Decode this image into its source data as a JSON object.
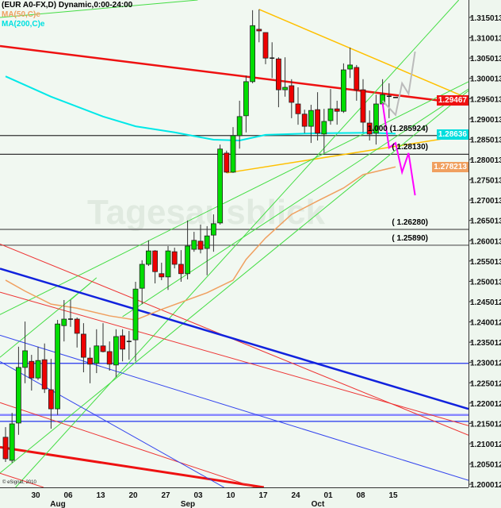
{
  "header": {
    "title": "(EUR A0-FX,D) Dynamic,0:00-24:00",
    "ma50_label": "MA(50,C)e",
    "ma200_label": "MA(200,C)e"
  },
  "watermark": "Tagesausblick",
  "copyright": "© eSignal, 2010",
  "colors": {
    "background": "#f1f8f1",
    "up_candle": "#00dd00",
    "down_candle": "#ee0000",
    "ma50": "#f0a060",
    "ma200": "#00e8e8",
    "projection_bear": "#ff00ff",
    "projection_bull": "#bbbbbb"
  },
  "price_tags": [
    {
      "label": "1.29467",
      "value": 1.29467,
      "color": "#ee1111"
    },
    {
      "label": "1.28636",
      "value": 1.28636,
      "color": "#00dede"
    },
    {
      "label": "1.278213",
      "value": 1.278213,
      "color": "#f0a060"
    }
  ],
  "chart_data": {
    "type": "candlestick",
    "ylim": [
      1.198,
      1.319
    ],
    "grid": false,
    "y_ticks": [
      "1.315013",
      "1.310013",
      "1.305013",
      "1.300013",
      "1.295013",
      "1.290013",
      "1.285013",
      "1.280013",
      "1.275013",
      "1.270013",
      "1.265013",
      "1.260013",
      "1.255013",
      "1.250013",
      "1.245012",
      "1.240012",
      "1.235012",
      "1.230012",
      "1.225012",
      "1.220012",
      "1.215012",
      "1.210012",
      "1.205012",
      "1.200012"
    ],
    "x_ticks": [
      {
        "date": "2010-07-30",
        "label": "30"
      },
      {
        "date": "2010-08-06",
        "label": "06"
      },
      {
        "date": "2010-08-13",
        "label": "13"
      },
      {
        "date": "2010-08-20",
        "label": "20"
      },
      {
        "date": "2010-08-27",
        "label": "27"
      },
      {
        "date": "2010-09-03",
        "label": "03"
      },
      {
        "date": "2010-09-10",
        "label": "10"
      },
      {
        "date": "2010-09-17",
        "label": "17"
      },
      {
        "date": "2010-09-24",
        "label": "24"
      },
      {
        "date": "2010-10-01",
        "label": "01"
      },
      {
        "date": "2010-10-08",
        "label": "08"
      },
      {
        "date": "2010-10-15",
        "label": "15"
      }
    ],
    "months": [
      {
        "date": "2010-08-06",
        "label": "Aug"
      },
      {
        "date": "2010-09-03",
        "label": "Sep"
      },
      {
        "date": "2010-10-01",
        "label": "Oct"
      }
    ],
    "columns": [
      "date",
      "open",
      "high",
      "low",
      "close"
    ],
    "candles": [
      [
        "2010-07-23",
        1.2116,
        1.2141,
        1.2055,
        1.2063
      ],
      [
        "2010-07-26",
        1.2059,
        1.2176,
        1.2053,
        1.2149
      ],
      [
        "2010-07-27",
        1.2151,
        1.2339,
        1.2122,
        1.2288
      ],
      [
        "2010-07-28",
        1.2288,
        1.2401,
        1.2249,
        1.2329
      ],
      [
        "2010-07-29",
        1.2303,
        1.2319,
        1.2231,
        1.2262
      ],
      [
        "2010-07-30",
        1.2262,
        1.2339,
        1.2257,
        1.2305
      ],
      [
        "2010-08-02",
        1.2307,
        1.2347,
        1.2225,
        1.2235
      ],
      [
        "2010-08-03",
        1.2233,
        1.2309,
        1.2137,
        1.2186
      ],
      [
        "2010-08-04",
        1.2186,
        1.2405,
        1.2171,
        1.2395
      ],
      [
        "2010-08-05",
        1.2391,
        1.2454,
        1.2352,
        1.2407
      ],
      [
        "2010-08-06",
        1.2407,
        1.2454,
        1.2388,
        1.2406
      ],
      [
        "2010-08-09",
        1.2407,
        1.2411,
        1.2337,
        1.2372
      ],
      [
        "2010-08-10",
        1.237,
        1.2397,
        1.2276,
        1.2313
      ],
      [
        "2010-08-11",
        1.2311,
        1.2337,
        1.2249,
        1.2296
      ],
      [
        "2010-08-12",
        1.2298,
        1.2382,
        1.2274,
        1.2341
      ],
      [
        "2010-08-13",
        1.2341,
        1.2397,
        1.2325,
        1.2327
      ],
      [
        "2010-08-16",
        1.2327,
        1.2352,
        1.228,
        1.2296
      ],
      [
        "2010-08-17",
        1.2294,
        1.2382,
        1.2264,
        1.2364
      ],
      [
        "2010-08-18",
        1.2366,
        1.2382,
        1.2303,
        1.2333
      ],
      [
        "2010-08-19",
        1.2352,
        1.2378,
        1.2307,
        1.235
      ],
      [
        "2010-08-20",
        1.2356,
        1.2499,
        1.2303,
        1.2481
      ],
      [
        "2010-08-23",
        1.2483,
        1.2552,
        1.2444,
        1.2542
      ],
      [
        "2010-08-24",
        1.2542,
        1.2601,
        1.2538,
        1.2575
      ],
      [
        "2010-08-25",
        1.2575,
        1.2577,
        1.2495,
        1.2524
      ],
      [
        "2010-08-26",
        1.2519,
        1.2546,
        1.2503,
        1.2511
      ],
      [
        "2010-08-27",
        1.2511,
        1.2587,
        1.2479,
        1.2575
      ],
      [
        "2010-08-30",
        1.2573,
        1.2583,
        1.2532,
        1.2542
      ],
      [
        "2010-08-31",
        1.2542,
        1.2577,
        1.2499,
        1.2519
      ],
      [
        "2010-09-01",
        1.2519,
        1.265,
        1.2505,
        1.2587
      ],
      [
        "2010-09-02",
        1.2579,
        1.2622,
        1.2573,
        1.2601
      ],
      [
        "2010-09-03",
        1.2599,
        1.264,
        1.2569,
        1.2579
      ],
      [
        "2010-09-06",
        1.2581,
        1.2636,
        1.2515,
        1.2612
      ],
      [
        "2010-09-07",
        1.2614,
        1.2665,
        1.2573,
        1.2642
      ],
      [
        "2010-09-08",
        1.2644,
        1.2837,
        1.264,
        1.2826
      ],
      [
        "2010-09-09",
        1.2816,
        1.2822,
        1.2767,
        1.2769
      ],
      [
        "2010-09-10",
        1.2769,
        1.288,
        1.2767,
        1.2859
      ],
      [
        "2010-09-13",
        1.2859,
        1.2945,
        1.2827,
        1.2906
      ],
      [
        "2010-09-14",
        1.2908,
        1.3007,
        1.2867,
        1.2992
      ],
      [
        "2010-09-15",
        1.2992,
        1.3168,
        1.2988,
        1.313
      ],
      [
        "2010-09-16",
        1.3121,
        1.317,
        1.3089,
        1.3117
      ],
      [
        "2010-09-17",
        1.3113,
        1.3113,
        1.3035,
        1.305
      ],
      [
        "2010-09-20",
        1.305,
        1.3089,
        1.3001,
        1.3049
      ],
      [
        "2010-09-21",
        1.3048,
        1.3052,
        1.2929,
        1.2972
      ],
      [
        "2010-09-22",
        1.2972,
        1.3052,
        1.2955,
        1.2978
      ],
      [
        "2010-09-23",
        1.2982,
        1.2998,
        1.2902,
        1.2941
      ],
      [
        "2010-09-24",
        1.2937,
        1.2978,
        1.2886,
        1.2913
      ],
      [
        "2010-09-27",
        1.2912,
        1.2923,
        1.2865,
        1.2882
      ],
      [
        "2010-09-28",
        1.2882,
        1.2935,
        1.2841,
        1.2921
      ],
      [
        "2010-09-29",
        1.2923,
        1.2966,
        1.2847,
        1.2865
      ],
      [
        "2010-09-30",
        1.2863,
        1.2925,
        1.2816,
        1.2894
      ],
      [
        "2010-10-01",
        1.2896,
        1.2974,
        1.2886,
        1.2925
      ],
      [
        "2010-10-04",
        1.2925,
        1.2945,
        1.2886,
        1.2919
      ],
      [
        "2010-10-05",
        1.2919,
        1.3037,
        1.2915,
        1.3021
      ],
      [
        "2010-10-06",
        1.3023,
        1.3076,
        1.3001,
        1.3033
      ],
      [
        "2010-10-07",
        1.3027,
        1.3033,
        1.2945,
        1.2972
      ],
      [
        "2010-10-08",
        1.2972,
        1.2998,
        1.2867,
        1.2892
      ],
      [
        "2010-10-11",
        1.289,
        1.2921,
        1.2847,
        1.2863
      ],
      [
        "2010-10-12",
        1.2865,
        1.296,
        1.2837,
        1.2937
      ],
      [
        "2010-10-13",
        1.2937,
        1.2998,
        1.2933,
        1.296
      ],
      [
        "2010-10-14",
        1.2956,
        1.2988,
        1.2902,
        1.2955
      ],
      [
        "2010-10-15",
        1.2953,
        1.2953,
        1.2953,
        1.2953
      ]
    ],
    "series": [
      {
        "name": "MA(50,C)e",
        "color": "#f0a060",
        "points": [
          [
            "2010-07-23",
            1.2503
          ],
          [
            "2010-07-28",
            1.2476
          ],
          [
            "2010-08-03",
            1.2444
          ],
          [
            "2010-08-09",
            1.2434
          ],
          [
            "2010-08-16",
            1.2415
          ],
          [
            "2010-08-20",
            1.2405
          ],
          [
            "2010-08-26",
            1.2431
          ],
          [
            "2010-09-06",
            1.2472
          ],
          [
            "2010-09-10",
            1.2503
          ],
          [
            "2010-09-14",
            1.2554
          ],
          [
            "2010-09-17",
            1.2607
          ],
          [
            "2010-09-23",
            1.2665
          ],
          [
            "2010-09-29",
            1.2698
          ],
          [
            "2010-10-05",
            1.273
          ],
          [
            "2010-10-08",
            1.2763
          ],
          [
            "2010-10-15",
            1.2782
          ]
        ]
      },
      {
        "name": "MA(200,C)e",
        "color": "#00e8e8",
        "points": [
          [
            "2010-07-23",
            1.3005
          ],
          [
            "2010-08-03",
            1.2955
          ],
          [
            "2010-08-13",
            1.2906
          ],
          [
            "2010-08-20",
            1.2882
          ],
          [
            "2010-08-30",
            1.2867
          ],
          [
            "2010-09-07",
            1.2849
          ],
          [
            "2010-09-13",
            1.2847
          ],
          [
            "2010-09-17",
            1.2861
          ],
          [
            "2010-09-29",
            1.2865
          ],
          [
            "2010-10-11",
            1.2866
          ],
          [
            "2010-10-15",
            1.2864
          ]
        ]
      }
    ],
    "horizontal_levels": [
      {
        "value": 1.285924,
        "label": "1.000 (1.285924)",
        "color": "#333333"
      },
      {
        "value": 1.2813,
        "label": "( 1.28130)",
        "color": "#333333"
      },
      {
        "value": 1.2628,
        "label": "( 1.26280)",
        "color": "#555555"
      },
      {
        "value": 1.2589,
        "label": "( 1.25890)",
        "color": "#555555"
      },
      {
        "value": 1.2298,
        "label": "",
        "color": "#2233ee"
      },
      {
        "value": 1.2171,
        "label": "",
        "color": "#8888ff"
      },
      {
        "value": 1.2155,
        "label": "",
        "color": "#2233ee"
      }
    ],
    "trendlines": [
      {
        "color": "#ee1111",
        "width": 2.5,
        "extend": true,
        "p1": [
          "2010-07-22",
          1.308
        ],
        "p2": [
          "2010-11-02",
          1.2935
        ]
      },
      {
        "color": "#ee1111",
        "width": 3,
        "extend": true,
        "p1": [
          "2010-07-22",
          1.2092
        ],
        "p2": [
          "2010-09-21",
          1.1987
        ]
      },
      {
        "color": "#ffc000",
        "width": 1.5,
        "extend": false,
        "p1": [
          "2010-09-16",
          1.317
        ],
        "p2": [
          "2010-11-02",
          1.2945
        ]
      },
      {
        "color": "#ffc000",
        "width": 1.5,
        "extend": false,
        "p1": [
          "2010-09-09",
          1.2767
        ],
        "p2": [
          "2010-11-02",
          1.2863
        ]
      },
      {
        "color": "#44dd44",
        "width": 1,
        "extend": true,
        "p1": [
          "2010-07-22",
          1.315
        ],
        "p2": [
          "2010-10-01",
          1.3222
        ]
      },
      {
        "color": "#44dd44",
        "width": 1,
        "extend": true,
        "p1": [
          "2010-07-22",
          1.2417
        ],
        "p2": [
          "2010-11-02",
          1.2998
        ]
      },
      {
        "color": "#44dd44",
        "width": 1,
        "extend": true,
        "p1": [
          "2010-07-22",
          1.2026
        ],
        "p2": [
          "2010-11-02",
          1.298
        ]
      },
      {
        "color": "#44dd44",
        "width": 1,
        "extend": true,
        "p1": [
          "2010-08-26",
          1.2388
        ],
        "p2": [
          "2010-10-29",
          1.3198
        ]
      },
      {
        "color": "#44dd44",
        "width": 1,
        "extend": false,
        "p1": [
          "2010-08-18",
          1.2413
        ],
        "p2": [
          "2010-11-02",
          1.2982
        ]
      },
      {
        "color": "#44dd44",
        "width": 1,
        "extend": false,
        "p1": [
          "2010-07-22",
          1.2311
        ],
        "p2": [
          "2010-08-11",
          1.2495
        ]
      },
      {
        "color": "#44dd44",
        "width": 1,
        "extend": false,
        "p1": [
          "2010-08-06",
          1.2454
        ],
        "p2": [
          "2010-08-12",
          1.2509
        ]
      },
      {
        "color": "#ee3333",
        "width": 1,
        "extend": true,
        "p1": [
          "2010-07-22",
          1.2474
        ],
        "p2": [
          "2010-11-02",
          1.2141
        ]
      },
      {
        "color": "#ee3333",
        "width": 1,
        "extend": true,
        "p1": [
          "2010-07-22",
          1.2593
        ],
        "p2": [
          "2010-11-02",
          1.2116
        ]
      },
      {
        "color": "#ee3333",
        "width": 1,
        "extend": true,
        "p1": [
          "2010-07-22",
          1.2202
        ],
        "p2": [
          "2010-09-21",
          1.1973
        ]
      },
      {
        "color": "#ee3333",
        "width": 1,
        "extend": true,
        "p1": [
          "2010-07-22",
          1.2028
        ],
        "p2": [
          "2010-08-06",
          1.1971
        ]
      },
      {
        "color": "#1122dd",
        "width": 2.5,
        "extend": true,
        "p1": [
          "2010-07-22",
          1.2532
        ],
        "p2": [
          "2010-11-02",
          1.2182
        ]
      },
      {
        "color": "#3344ee",
        "width": 1,
        "extend": true,
        "p1": [
          "2010-07-22",
          1.2368
        ],
        "p2": [
          "2010-11-02",
          1.2006
        ]
      },
      {
        "color": "#3344ee",
        "width": 1,
        "extend": true,
        "p1": [
          "2010-07-22",
          1.2304
        ],
        "p2": [
          "2010-09-21",
          1.1917
        ]
      }
    ],
    "projections": [
      {
        "color": "#ff00ff",
        "points": [
          [
            "2010-10-13",
            1.2939
          ],
          [
            "2010-10-14",
            1.2829
          ],
          [
            "2010-10-15",
            1.2841
          ],
          [
            "2010-10-18",
            1.2769
          ],
          [
            "2010-10-19",
            1.2816
          ],
          [
            "2010-10-20",
            1.2712
          ]
        ]
      },
      {
        "color": "#bbbbbb",
        "points": [
          [
            "2010-10-13",
            1.2945
          ],
          [
            "2010-10-15",
            1.291
          ],
          [
            "2010-10-18",
            1.2988
          ],
          [
            "2010-10-19",
            1.2962
          ],
          [
            "2010-10-20",
            1.3066
          ]
        ]
      }
    ]
  }
}
